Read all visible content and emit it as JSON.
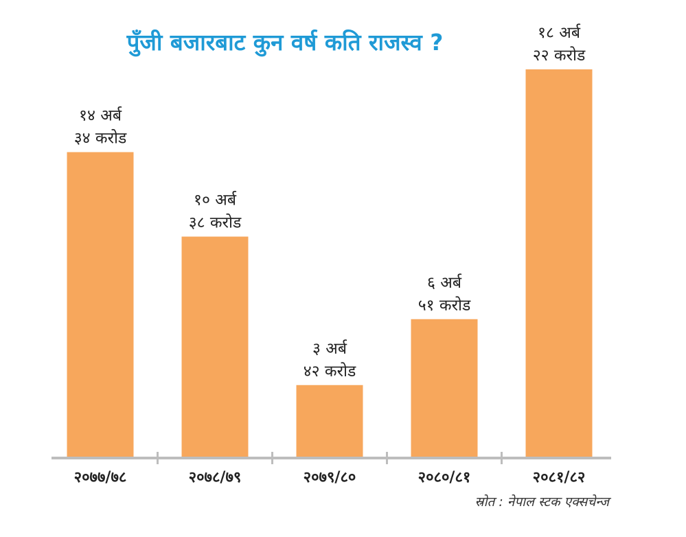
{
  "colors": {
    "title": "#1f9ad6",
    "bar": "#f7a75c",
    "axis": "#bdbdbd",
    "text": "#222222"
  },
  "chart_data": {
    "type": "bar",
    "title": "पुँजी बजारबाट कुन वर्ष कति राजस्व ?",
    "categories": [
      "२०७७/७८",
      "२०७८/७९",
      "२०७९/८०",
      "२०८०/८१",
      "२०८१/८२"
    ],
    "values": [
      14.34,
      10.38,
      3.42,
      6.51,
      18.22
    ],
    "value_unit": "अर्ब रुपैयाँ",
    "data_labels": [
      [
        "१४ अर्ब",
        "३४ करोड"
      ],
      [
        "१० अर्ब",
        "३८ करोड"
      ],
      [
        "३ अर्ब",
        "४२ करोड"
      ],
      [
        "६ अर्ब",
        "५१ करोड"
      ],
      [
        "१८ अर्ब",
        "२२ करोड"
      ]
    ],
    "ylim": [
      0,
      18.22
    ],
    "grid": false,
    "legend": "none",
    "source": "स्रोत : नेपाल स्टक एक्सचेन्ज"
  }
}
